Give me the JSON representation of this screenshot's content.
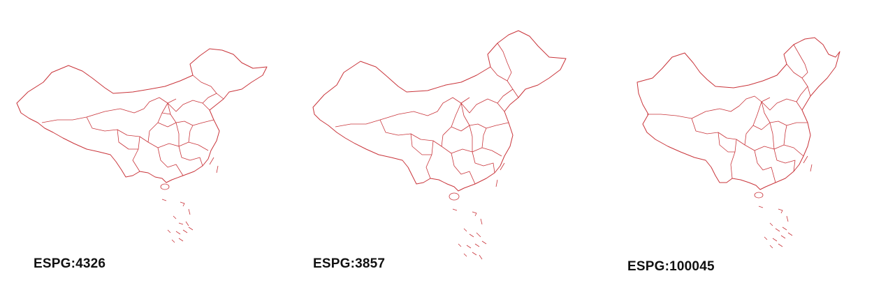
{
  "panels": [
    {
      "caption": "ESPG:4326"
    },
    {
      "caption": "ESPG:3857"
    },
    {
      "caption": "ESPG:100045"
    }
  ],
  "colors": {
    "boundary": "#c9343a",
    "background": "#ffffff"
  }
}
